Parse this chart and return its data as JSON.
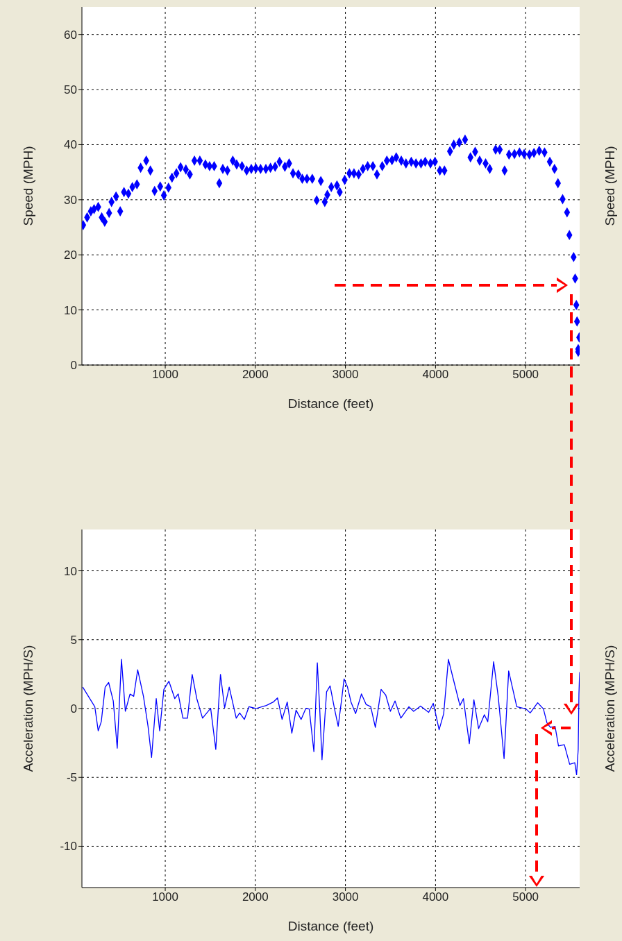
{
  "chart_data": [
    {
      "type": "scatter",
      "xlabel": "Distance (feet)",
      "ylabel": "Speed (MPH)",
      "y2label": "Speed (MPH)",
      "color": "#0000ff",
      "marker": "diamond",
      "grid": true,
      "xlim": [
        75,
        5600
      ],
      "xticks": [
        1000,
        2000,
        3000,
        4000,
        5000
      ],
      "ylim": [
        0,
        65
      ],
      "yticks": [
        0,
        10,
        20,
        30,
        40,
        50,
        60
      ],
      "x": [
        89,
        133,
        174,
        210,
        256,
        295,
        328,
        377,
        404,
        454,
        500,
        542,
        591,
        635,
        686,
        727,
        789,
        835,
        882,
        944,
        985,
        1036,
        1075,
        1124,
        1170,
        1229,
        1273,
        1324,
        1384,
        1446,
        1492,
        1543,
        1600,
        1639,
        1690,
        1750,
        1793,
        1852,
        1904,
        1955,
        2006,
        2058,
        2117,
        2168,
        2220,
        2269,
        2328,
        2375,
        2418,
        2477,
        2521,
        2573,
        2632,
        2681,
        2727,
        2771,
        2799,
        2843,
        2906,
        2937,
        2992,
        3044,
        3095,
        3147,
        3194,
        3247,
        3305,
        3350,
        3409,
        3460,
        3517,
        3564,
        3620,
        3672,
        3731,
        3783,
        3839,
        3886,
        3944,
        3994,
        4048,
        4099,
        4161,
        4203,
        4264,
        4328,
        4388,
        4440,
        4490,
        4556,
        4602,
        4667,
        4713,
        4767,
        4816,
        4876,
        4932,
        4984,
        5043,
        5093,
        5151,
        5210,
        5269,
        5321,
        5359,
        5411,
        5460,
        5486,
        5533,
        5550,
        5563,
        5571,
        5595,
        5584,
        5584
      ],
      "values": [
        25.4,
        26.8,
        27.9,
        28.3,
        28.7,
        26.8,
        26.0,
        27.6,
        29.6,
        30.6,
        27.9,
        31.4,
        31.1,
        32.3,
        32.8,
        35.8,
        37.1,
        35.3,
        31.6,
        32.4,
        30.8,
        32.2,
        34.0,
        34.8,
        35.9,
        35.5,
        34.6,
        37.1,
        37.1,
        36.4,
        36.1,
        36.1,
        33.0,
        35.6,
        35.3,
        37.1,
        36.4,
        36.1,
        35.3,
        35.6,
        35.7,
        35.6,
        35.6,
        35.8,
        36.0,
        36.9,
        36.0,
        36.6,
        34.8,
        34.6,
        33.8,
        33.8,
        33.8,
        29.9,
        33.4,
        29.6,
        30.9,
        32.3,
        32.6,
        31.4,
        33.6,
        34.8,
        34.8,
        34.6,
        35.6,
        36.1,
        36.1,
        34.6,
        36.1,
        37.1,
        37.2,
        37.7,
        37.1,
        36.6,
        36.9,
        36.6,
        36.6,
        36.9,
        36.6,
        36.9,
        35.3,
        35.3,
        38.8,
        40.0,
        40.4,
        40.9,
        37.7,
        38.7,
        37.1,
        36.6,
        35.6,
        39.1,
        39.1,
        35.3,
        38.2,
        38.3,
        38.6,
        38.3,
        38.2,
        38.5,
        38.9,
        38.6,
        36.9,
        35.6,
        33.0,
        30.1,
        27.7,
        23.6,
        19.6,
        15.7,
        10.9,
        7.9,
        5.0,
        2.9,
        2.4
      ]
    },
    {
      "type": "line",
      "xlabel": "Distance (feet)",
      "ylabel": "Acceleration (MPH/S)",
      "y2label": "Acceleration (MPH/S)",
      "color": "#0000ff",
      "grid": true,
      "xlim": [
        75,
        5600
      ],
      "xticks": [
        1000,
        2000,
        3000,
        4000,
        5000
      ],
      "ylim": [
        -13,
        13
      ],
      "yticks": [
        -10,
        -5,
        0,
        5,
        10
      ],
      "x": [
        84,
        218,
        256,
        290,
        333,
        372,
        423,
        467,
        514,
        557,
        609,
        650,
        694,
        758,
        809,
        848,
        900,
        938,
        985,
        1041,
        1106,
        1144,
        1196,
        1247,
        1299,
        1350,
        1414,
        1504,
        1561,
        1613,
        1659,
        1710,
        1788,
        1826,
        1878,
        1929,
        2006,
        2122,
        2199,
        2246,
        2297,
        2354,
        2405,
        2452,
        2508,
        2560,
        2598,
        2650,
        2688,
        2714,
        2740,
        2791,
        2830,
        2882,
        2920,
        2959,
        2985,
        3023,
        3062,
        3113,
        3178,
        3229,
        3281,
        3332,
        3358,
        3396,
        3448,
        3499,
        3551,
        3615,
        3705,
        3757,
        3834,
        3924,
        3975,
        4001,
        4040,
        4091,
        4143,
        4194,
        4271,
        4310,
        4375,
        4426,
        4478,
        4542,
        4580,
        4645,
        4696,
        4761,
        4812,
        4902,
        5005,
        5051,
        5134,
        5198,
        5237,
        5275,
        5327,
        5365,
        5430,
        5489,
        5546,
        5566,
        5584,
        5592,
        5600
      ],
      "values": [
        1.56,
        0.13,
        -1.62,
        -0.95,
        1.56,
        1.89,
        0.55,
        -2.88,
        3.57,
        -0.2,
        1.05,
        0.89,
        2.81,
        0.89,
        -1.29,
        -3.55,
        0.72,
        -1.62,
        1.39,
        1.98,
        0.72,
        1.06,
        -0.7,
        -0.7,
        2.48,
        0.72,
        -0.7,
        0.02,
        -2.97,
        2.48,
        0.05,
        1.56,
        -0.7,
        -0.32,
        -0.79,
        0.13,
        0.0,
        0.22,
        0.47,
        0.77,
        -0.79,
        0.47,
        -1.79,
        -0.12,
        -0.79,
        0.0,
        -0.03,
        -3.13,
        3.32,
        0.05,
        -3.72,
        1.22,
        1.64,
        -0.12,
        -1.29,
        0.72,
        2.15,
        1.56,
        0.47,
        -0.37,
        1.06,
        0.3,
        0.13,
        -1.37,
        -0.28,
        1.39,
        0.97,
        -0.2,
        0.55,
        -0.7,
        0.13,
        -0.2,
        0.18,
        -0.28,
        0.38,
        -0.37,
        -1.54,
        -0.37,
        3.57,
        2.23,
        0.22,
        0.72,
        -2.55,
        0.64,
        -1.46,
        -0.45,
        -0.96,
        3.4,
        0.89,
        -3.64,
        2.73,
        0.13,
        -0.03,
        -0.32,
        0.42,
        -0.03,
        -1.04,
        -1.37,
        -1.29,
        -2.71,
        -2.63,
        -4.05,
        -3.94,
        -4.81,
        -2.96,
        1.06,
        2.64
      ]
    }
  ]
}
